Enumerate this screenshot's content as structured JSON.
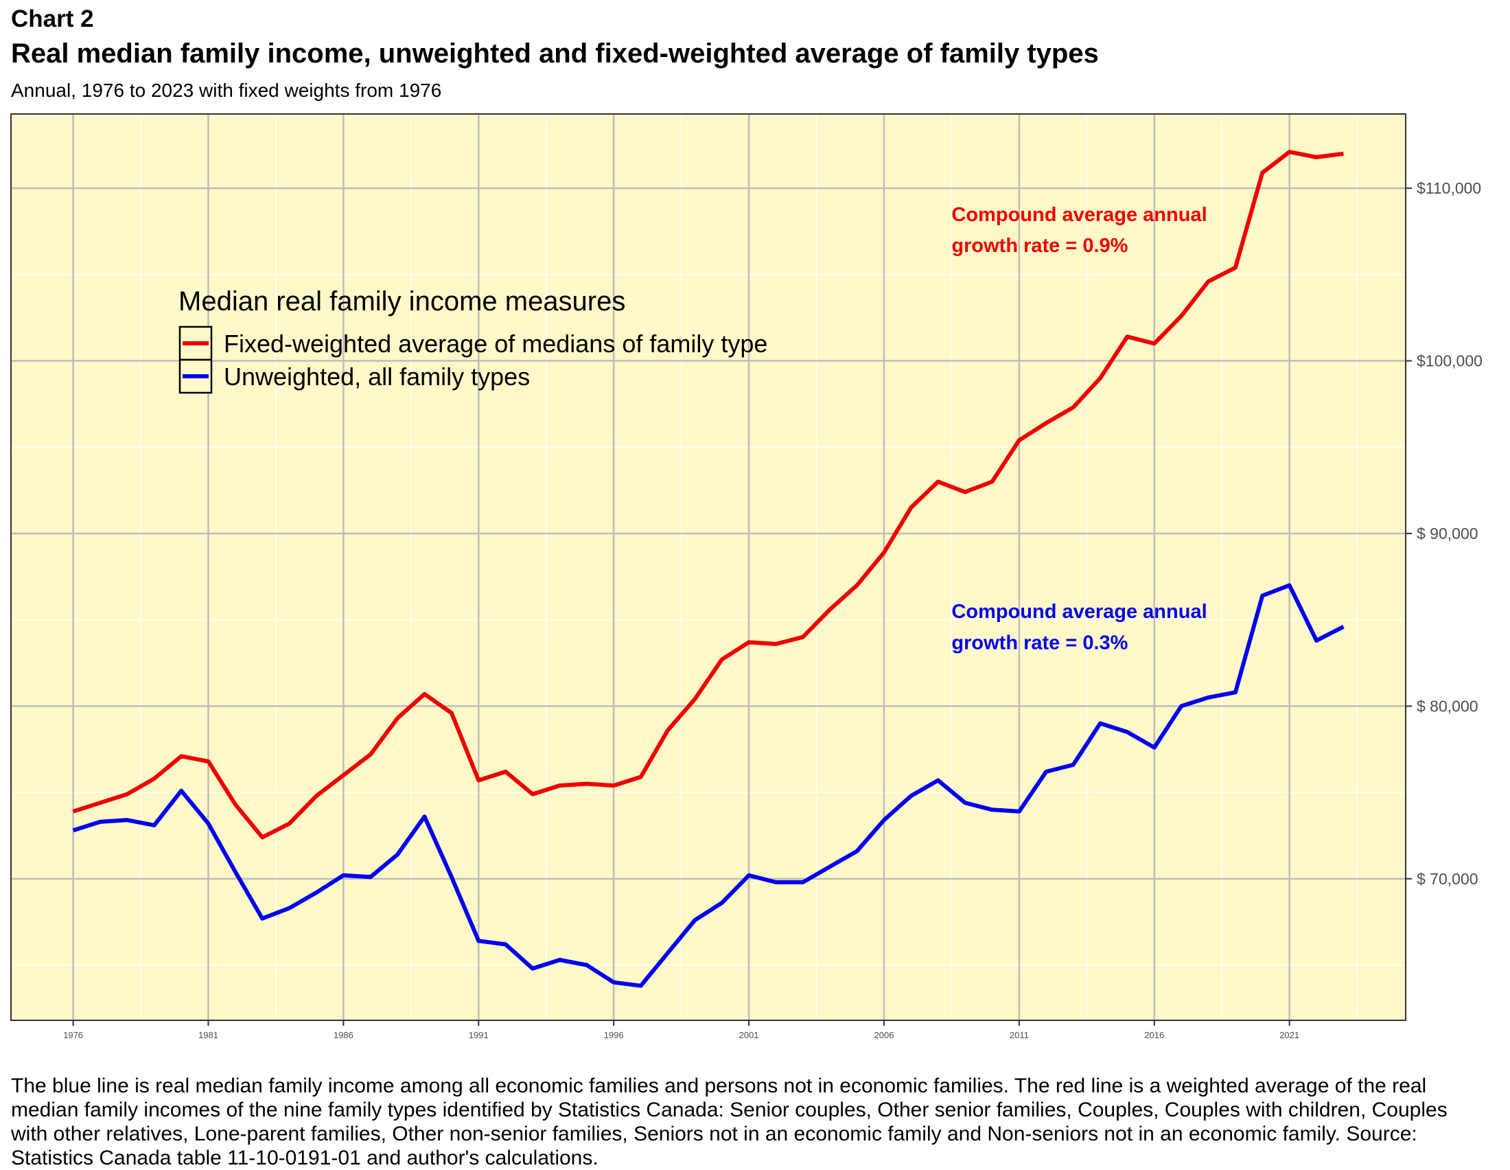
{
  "header": {
    "chart_label": "Chart 2",
    "title": "Real median family income, unweighted and fixed-weighted average of family types",
    "subtitle": "Annual, 1976 to 2023 with fixed weights from 1976"
  },
  "caption": "The blue line is real median family income among all economic families and persons not in economic families. The red line is a weighted average of the real median family incomes of the nine family types identified by Statistics Canada: Senior couples, Other senior families, Couples, Couples with children, Couples with other relatives, Lone-parent families, Other non-senior families, Seniors not in an economic family and Non-seniors not in an economic family. Source: Statistics Canada table 11-10-0191-01 and author's calculations.",
  "colors": {
    "panel_background": "#fff8c8",
    "fixed_weighted": "#ee0000",
    "unweighted": "#0000ee"
  },
  "chart_data": {
    "type": "line",
    "title": "Real median family income, unweighted and fixed-weighted average of family types",
    "subtitle": "Annual, 1976 to 2023 with fixed weights from 1976",
    "xlabel": "",
    "ylabel": "",
    "xlim": [
      1973.7,
      2025.3
    ],
    "ylim": [
      61800,
      114300
    ],
    "x_ticks": [
      1976,
      1981,
      1986,
      1991,
      1996,
      2001,
      2006,
      2011,
      2016,
      2021
    ],
    "y_ticks": [
      70000,
      80000,
      90000,
      100000,
      110000
    ],
    "y_tick_labels": [
      "$ 70,000",
      "$ 80,000",
      "$ 90,000",
      "$100,000",
      "$110,000"
    ],
    "grid": true,
    "axis_position_y": "right",
    "legend": {
      "title": "Median real family income measures",
      "position": "upper-left-inside"
    },
    "x": [
      1976,
      1977,
      1978,
      1979,
      1980,
      1981,
      1982,
      1983,
      1984,
      1985,
      1986,
      1987,
      1988,
      1989,
      1990,
      1991,
      1992,
      1993,
      1994,
      1995,
      1996,
      1997,
      1998,
      1999,
      2000,
      2001,
      2002,
      2003,
      2004,
      2005,
      2006,
      2007,
      2008,
      2009,
      2010,
      2011,
      2012,
      2013,
      2014,
      2015,
      2016,
      2017,
      2018,
      2019,
      2020,
      2021,
      2022,
      2023
    ],
    "series": [
      {
        "name": "Fixed-weighted average of medians of family type",
        "color": "#ee0000",
        "values": [
          73900,
          74400,
          74900,
          75800,
          77100,
          76800,
          74300,
          72400,
          73200,
          74800,
          76000,
          77200,
          79300,
          80700,
          79600,
          75700,
          76200,
          74900,
          75400,
          75500,
          75400,
          75900,
          78600,
          80400,
          82700,
          83700,
          83600,
          84000,
          85600,
          87000,
          88900,
          91500,
          93000,
          92400,
          93000,
          95400,
          96400,
          97300,
          99000,
          101400,
          101000,
          102600,
          104600,
          105400,
          110900,
          112100,
          111800,
          112000
        ]
      },
      {
        "name": "Unweighted, all family types",
        "color": "#0000ee",
        "values": [
          72800,
          73300,
          73400,
          73100,
          75100,
          73200,
          70400,
          67700,
          68300,
          69200,
          70200,
          70100,
          71400,
          73600,
          70100,
          66400,
          66200,
          64800,
          65300,
          65000,
          64000,
          63800,
          65700,
          67600,
          68600,
          70200,
          69800,
          69800,
          70700,
          71600,
          73400,
          74800,
          75700,
          74400,
          74000,
          73900,
          76200,
          76600,
          79000,
          78500,
          77600,
          80000,
          80500,
          80800,
          86400,
          87000,
          83800,
          84600
        ]
      }
    ],
    "annotations": [
      {
        "text_line1": "Compound average annual",
        "text_line2": "growth rate = 0.9%",
        "color": "#ee0000"
      },
      {
        "text_line1": "Compound average annual",
        "text_line2": "growth rate = 0.3%",
        "color": "#0000ee"
      }
    ]
  }
}
